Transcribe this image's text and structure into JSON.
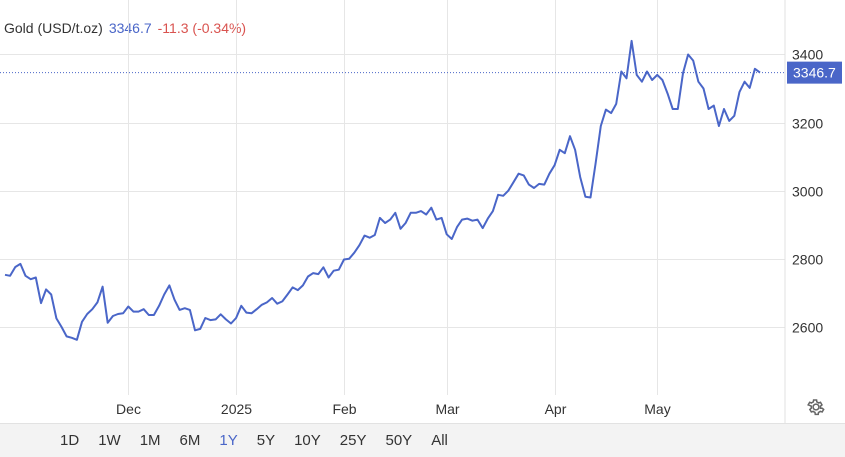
{
  "header": {
    "symbol": "Gold (USD/t.oz)",
    "price": "3346.7",
    "change": "-11.3 (-0.34%)"
  },
  "price_tag": "3346.7",
  "ranges": [
    "1D",
    "1W",
    "1M",
    "6M",
    "1Y",
    "5Y",
    "10Y",
    "25Y",
    "50Y",
    "All"
  ],
  "active_range": "1Y",
  "colors": {
    "line": "#4a66c8",
    "change_negative": "#d9534f",
    "grid": "#e6e6e6"
  },
  "icons": {
    "settings": "gear-icon"
  },
  "chart_data": {
    "type": "line",
    "title": "",
    "xlabel": "",
    "ylabel": "",
    "ylim": [
      2400,
      3560
    ],
    "yticks": [
      2600,
      2800,
      3000,
      3200,
      3400
    ],
    "last_value": 3346.7,
    "xticks": [
      {
        "label": "Dec",
        "index": 24
      },
      {
        "label": "2025",
        "index": 45
      },
      {
        "label": "Feb",
        "index": 66
      },
      {
        "label": "Mar",
        "index": 86
      },
      {
        "label": "Apr",
        "index": 107
      },
      {
        "label": "May",
        "index": 127
      }
    ],
    "series": [
      {
        "values": [
          2753,
          2750,
          2776,
          2785,
          2750,
          2740,
          2745,
          2670,
          2710,
          2695,
          2625,
          2600,
          2572,
          2568,
          2562,
          2615,
          2638,
          2652,
          2672,
          2718,
          2612,
          2632,
          2638,
          2640,
          2660,
          2645,
          2645,
          2652,
          2635,
          2635,
          2662,
          2695,
          2722,
          2680,
          2650,
          2655,
          2650,
          2590,
          2594,
          2626,
          2620,
          2622,
          2637,
          2622,
          2610,
          2626,
          2662,
          2642,
          2640,
          2652,
          2665,
          2672,
          2685,
          2668,
          2675,
          2695,
          2716,
          2708,
          2722,
          2748,
          2758,
          2755,
          2775,
          2745,
          2765,
          2768,
          2798,
          2800,
          2818,
          2840,
          2868,
          2862,
          2870,
          2920,
          2905,
          2915,
          2935,
          2888,
          2905,
          2935,
          2935,
          2940,
          2930,
          2950,
          2915,
          2920,
          2872,
          2858,
          2893,
          2915,
          2918,
          2912,
          2915,
          2890,
          2918,
          2940,
          2988,
          2985,
          3000,
          3025,
          3050,
          3045,
          3018,
          3008,
          3020,
          3018,
          3050,
          3075,
          3120,
          3110,
          3160,
          3120,
          3040,
          2982,
          2980,
          3080,
          3190,
          3238,
          3228,
          3255,
          3350,
          3330,
          3440,
          3340,
          3320,
          3350,
          3325,
          3340,
          3325,
          3285,
          3240,
          3240,
          3345,
          3400,
          3382,
          3320,
          3300,
          3240,
          3250,
          3190,
          3240,
          3205,
          3220,
          3290,
          3320,
          3302,
          3358,
          3346.7
        ]
      }
    ]
  }
}
